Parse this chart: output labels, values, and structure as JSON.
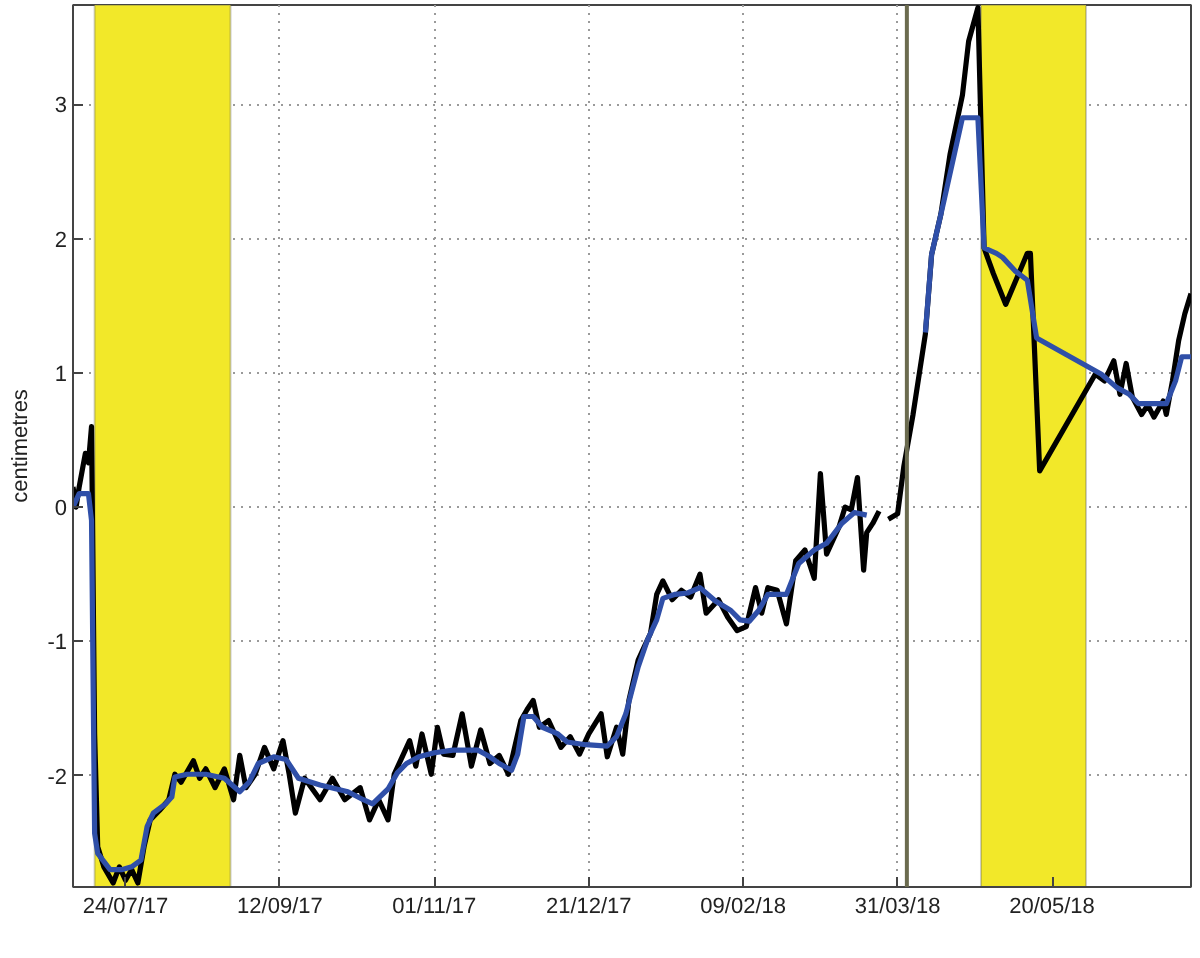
{
  "chart_data": {
    "type": "line",
    "ylabel": "centimetres",
    "xlim": [
      "2017-07-07",
      "2018-07-04"
    ],
    "ylim": [
      -2.83,
      3.74
    ],
    "xticks": [
      {
        "value": "2017-07-24",
        "label": "24/07/17"
      },
      {
        "value": "2017-09-12",
        "label": "12/09/17"
      },
      {
        "value": "2017-11-01",
        "label": "01/11/17"
      },
      {
        "value": "2017-12-21",
        "label": "21/12/17"
      },
      {
        "value": "2018-02-09",
        "label": "09/02/18"
      },
      {
        "value": "2018-03-31",
        "label": "31/03/18"
      },
      {
        "value": "2018-05-20",
        "label": "20/05/18"
      }
    ],
    "yticks": [
      -2,
      -1,
      0,
      1,
      2,
      3
    ],
    "grid": true,
    "bands": [
      {
        "axis": "x",
        "from": "2017-07-14",
        "to": "2017-08-27",
        "color": "#f2e829"
      },
      {
        "axis": "x",
        "from": "2018-04-27",
        "to": "2018-05-31",
        "color": "#f2e829"
      }
    ],
    "ref_lines": [
      {
        "axis": "x",
        "value": "2018-04-03",
        "color": "#6b6b4f"
      }
    ],
    "series": [
      {
        "color": "#000000",
        "x": [
          "2017-07-07",
          "2017-07-08",
          "2017-07-09",
          "2017-07-11",
          "2017-07-12",
          "2017-07-13",
          "2017-07-14",
          "2017-07-15",
          "2017-07-17",
          "2017-07-20",
          "2017-07-22",
          "2017-07-24",
          "2017-07-26",
          "2017-07-28",
          "2017-07-30",
          "2017-08-01",
          "2017-08-04",
          "2017-08-07",
          "2017-08-09",
          "2017-08-11",
          "2017-08-15",
          "2017-08-17",
          "2017-08-19",
          "2017-08-22",
          "2017-08-25",
          "2017-08-28",
          "2017-08-30",
          "2017-09-01",
          "2017-09-04",
          "2017-09-07",
          "2017-09-10",
          "2017-09-13",
          "2017-09-15",
          "2017-09-17",
          "2017-09-20",
          "2017-09-25",
          "2017-09-29",
          "2017-10-03",
          "2017-10-08",
          "2017-10-11",
          "2017-10-14",
          "2017-10-17",
          "2017-10-19",
          "2017-10-21",
          "2017-10-24",
          "2017-10-26",
          "2017-10-28",
          "2017-10-31",
          "2017-11-02",
          "2017-11-04",
          "2017-11-07",
          "2017-11-10",
          "2017-11-13",
          "2017-11-16",
          "2017-11-19",
          "2017-11-22",
          "2017-11-25",
          "2017-11-29",
          "2017-12-01",
          "2017-12-03",
          "2017-12-05",
          "2017-12-08",
          "2017-12-12",
          "2017-12-15",
          "2017-12-18",
          "2017-12-21",
          "2017-12-25",
          "2017-12-27",
          "2017-12-30",
          "2018-01-01",
          "2018-01-03",
          "2018-01-06",
          "2018-01-08",
          "2018-01-10",
          "2018-01-12",
          "2018-01-14",
          "2018-01-17",
          "2018-01-20",
          "2018-01-23",
          "2018-01-26",
          "2018-01-28",
          "2018-02-01",
          "2018-02-04",
          "2018-02-07",
          "2018-02-10",
          "2018-02-13",
          "2018-02-15",
          "2018-02-17",
          "2018-02-20",
          "2018-02-23",
          "2018-02-26",
          "2018-03-01",
          "2018-03-04",
          "2018-03-06",
          "2018-03-08",
          "2018-03-10",
          "2018-03-12",
          "2018-03-14",
          "2018-03-16",
          "2018-03-18",
          "2018-03-20",
          "2018-03-21",
          "2018-03-23",
          "2018-03-25",
          "2018-03-26",
          "2018-03-28",
          "2018-03-31",
          "2018-04-02",
          "2018-04-05",
          "2018-04-09",
          "2018-04-11",
          "2018-04-14",
          "2018-04-17",
          "2018-04-21",
          "2018-04-23",
          "2018-04-26",
          "2018-04-28",
          "2018-05-01",
          "2018-05-05",
          "2018-05-12",
          "2018-05-13",
          "2018-05-16",
          "2018-06-03",
          "2018-06-06",
          "2018-06-09",
          "2018-06-11",
          "2018-06-13",
          "2018-06-15",
          "2018-06-18",
          "2018-06-20",
          "2018-06-22",
          "2018-06-25",
          "2018-06-26",
          "2018-06-28",
          "2018-06-30",
          "2018-07-02",
          "2018-07-04"
        ],
        "values": [
          0.15,
          0.0,
          0.15,
          0.4,
          0.33,
          0.6,
          -1.69,
          -2.53,
          -2.68,
          -2.8,
          -2.68,
          -2.78,
          -2.7,
          -2.8,
          -2.53,
          -2.33,
          -2.26,
          -2.18,
          -1.99,
          -2.05,
          -1.89,
          -2.02,
          -1.95,
          -2.09,
          -1.95,
          -2.18,
          -1.85,
          -2.09,
          -1.99,
          -1.79,
          -1.95,
          -1.74,
          -1.99,
          -2.28,
          -2.02,
          -2.18,
          -2.02,
          -2.18,
          -2.09,
          -2.33,
          -2.18,
          -2.33,
          -1.99,
          -1.89,
          -1.74,
          -1.93,
          -1.69,
          -1.99,
          -1.64,
          -1.84,
          -1.85,
          -1.54,
          -1.93,
          -1.66,
          -1.91,
          -1.85,
          -1.99,
          -1.59,
          -1.51,
          -1.44,
          -1.64,
          -1.59,
          -1.79,
          -1.71,
          -1.84,
          -1.69,
          -1.54,
          -1.86,
          -1.64,
          -1.84,
          -1.44,
          -1.14,
          -1.04,
          -0.94,
          -0.65,
          -0.55,
          -0.69,
          -0.62,
          -0.67,
          -0.5,
          -0.79,
          -0.69,
          -0.82,
          -0.92,
          -0.89,
          -0.6,
          -0.79,
          -0.6,
          -0.62,
          -0.87,
          -0.4,
          -0.32,
          -0.53,
          0.25,
          -0.35,
          -0.25,
          -0.15,
          0.0,
          -0.02,
          0.22,
          -0.47,
          -0.19,
          -0.12,
          -0.03,
          null,
          -0.09,
          -0.05,
          0.3,
          0.69,
          1.29,
          1.88,
          2.18,
          2.63,
          3.07,
          3.47,
          3.72,
          1.93,
          1.74,
          1.51,
          1.89,
          1.89,
          0.27,
          0.99,
          0.94,
          1.09,
          0.84,
          1.07,
          0.82,
          0.69,
          0.76,
          0.67,
          0.79,
          0.69,
          0.94,
          1.24,
          1.44,
          1.59
        ]
      },
      {
        "color": "#2f4fa8",
        "x": [
          "2017-07-07",
          "2017-07-09",
          "2017-07-12",
          "2017-07-13",
          "2017-07-14",
          "2017-07-15",
          "2017-07-19",
          "2017-07-23",
          "2017-07-26",
          "2017-07-29",
          "2017-07-31",
          "2017-08-02",
          "2017-08-06",
          "2017-08-08",
          "2017-08-09",
          "2017-08-13",
          "2017-08-19",
          "2017-08-25",
          "2017-08-30",
          "2017-09-02",
          "2017-09-05",
          "2017-09-10",
          "2017-09-14",
          "2017-09-18",
          "2017-09-25",
          "2017-10-04",
          "2017-10-09",
          "2017-10-12",
          "2017-10-17",
          "2017-10-20",
          "2017-10-23",
          "2017-10-27",
          "2017-11-01",
          "2017-11-07",
          "2017-11-15",
          "2017-11-19",
          "2017-11-22",
          "2017-11-26",
          "2017-11-28",
          "2017-11-30",
          "2017-12-03",
          "2017-12-06",
          "2017-12-11",
          "2017-12-14",
          "2017-12-20",
          "2017-12-27",
          "2017-12-30",
          "2018-01-02",
          "2018-01-06",
          "2018-01-09",
          "2018-01-12",
          "2018-01-14",
          "2018-01-18",
          "2018-01-22",
          "2018-01-26",
          "2018-01-31",
          "2018-02-05",
          "2018-02-08",
          "2018-02-11",
          "2018-02-14",
          "2018-02-17",
          "2018-02-23",
          "2018-02-27",
          "2018-03-04",
          "2018-03-08",
          "2018-03-13",
          "2018-03-17",
          "2018-03-21",
          "2018-03-31",
          "2018-04-09",
          "2018-04-11",
          "2018-04-15",
          "2018-04-21",
          "2018-04-26",
          "2018-04-28",
          "2018-05-02",
          "2018-05-04",
          "2018-05-08",
          "2018-05-12",
          "2018-05-15",
          "2018-06-05",
          "2018-06-10",
          "2018-06-14",
          "2018-06-17",
          "2018-06-26",
          "2018-06-29",
          "2018-07-01",
          "2018-07-04"
        ],
        "values": [
          0.0,
          0.1,
          0.1,
          -0.1,
          -2.43,
          -2.58,
          -2.7,
          -2.7,
          -2.68,
          -2.63,
          -2.38,
          -2.28,
          -2.21,
          -2.16,
          -2.01,
          -1.99,
          -1.99,
          -2.02,
          -2.12,
          -2.05,
          -1.91,
          -1.86,
          -1.88,
          -2.02,
          -2.07,
          -2.12,
          -2.18,
          -2.21,
          -2.1,
          -1.98,
          -1.91,
          -1.86,
          -1.83,
          -1.81,
          -1.81,
          -1.86,
          -1.91,
          -1.96,
          -1.84,
          -1.56,
          -1.56,
          -1.64,
          -1.69,
          -1.75,
          -1.77,
          -1.78,
          -1.71,
          -1.54,
          -1.19,
          -0.99,
          -0.84,
          -0.68,
          -0.65,
          -0.64,
          -0.6,
          -0.7,
          -0.77,
          -0.84,
          -0.85,
          -0.77,
          -0.65,
          -0.65,
          -0.42,
          -0.32,
          -0.27,
          -0.12,
          -0.04,
          -0.06,
          null,
          1.3,
          1.88,
          2.28,
          2.9,
          2.9,
          1.93,
          1.89,
          1.86,
          1.76,
          1.69,
          1.26,
          0.99,
          0.89,
          0.84,
          0.77,
          0.77,
          0.94,
          1.12,
          1.12
        ]
      }
    ]
  }
}
